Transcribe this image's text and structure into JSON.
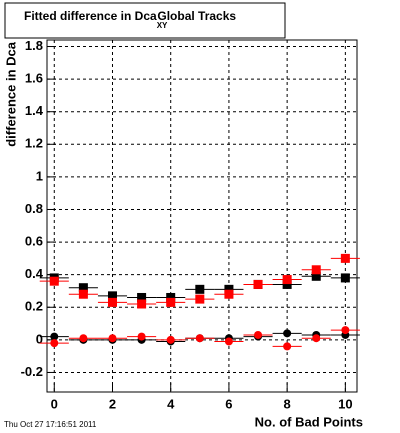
{
  "chart_data": {
    "type": "scatter",
    "title": "Fitted difference in Dca",
    "title_subscript": "XY",
    "title_suffix": "Global Tracks",
    "x_label": "No. of Bad Points",
    "y_label": "difference in Dca",
    "footer": "Thu Oct 27 17:16:51 2011",
    "x": [
      0,
      1,
      2,
      3,
      4,
      5,
      6,
      7,
      8,
      9,
      10
    ],
    "xerr": 0.5,
    "series": [
      {
        "color": "#000000",
        "marker": "square",
        "values": [
          0.38,
          0.32,
          0.27,
          0.26,
          0.26,
          0.31,
          0.31,
          0.34,
          0.34,
          0.39,
          0.38
        ]
      },
      {
        "color": "#ff0000",
        "marker": "square",
        "values": [
          0.36,
          0.28,
          0.23,
          0.22,
          0.23,
          0.25,
          0.28,
          0.34,
          0.37,
          0.43,
          0.5
        ]
      },
      {
        "color": "#000000",
        "marker": "circle",
        "values": [
          0.02,
          0.0,
          0.0,
          0.0,
          -0.01,
          0.01,
          0.01,
          0.02,
          0.04,
          0.03,
          0.03
        ]
      },
      {
        "color": "#ff0000",
        "marker": "circle",
        "values": [
          -0.02,
          0.01,
          0.01,
          0.02,
          0.0,
          0.01,
          -0.01,
          0.03,
          -0.04,
          0.01,
          0.06
        ]
      }
    ],
    "xlim": [
      -0.25,
      10.4
    ],
    "xticks": [
      0,
      2,
      4,
      6,
      8,
      10
    ],
    "ylim": [
      -0.32,
      1.84
    ],
    "yticks": [
      -0.2,
      0,
      0.2,
      0.4,
      0.6,
      0.8,
      1,
      1.2,
      1.4,
      1.6,
      1.8
    ],
    "grid": true
  }
}
